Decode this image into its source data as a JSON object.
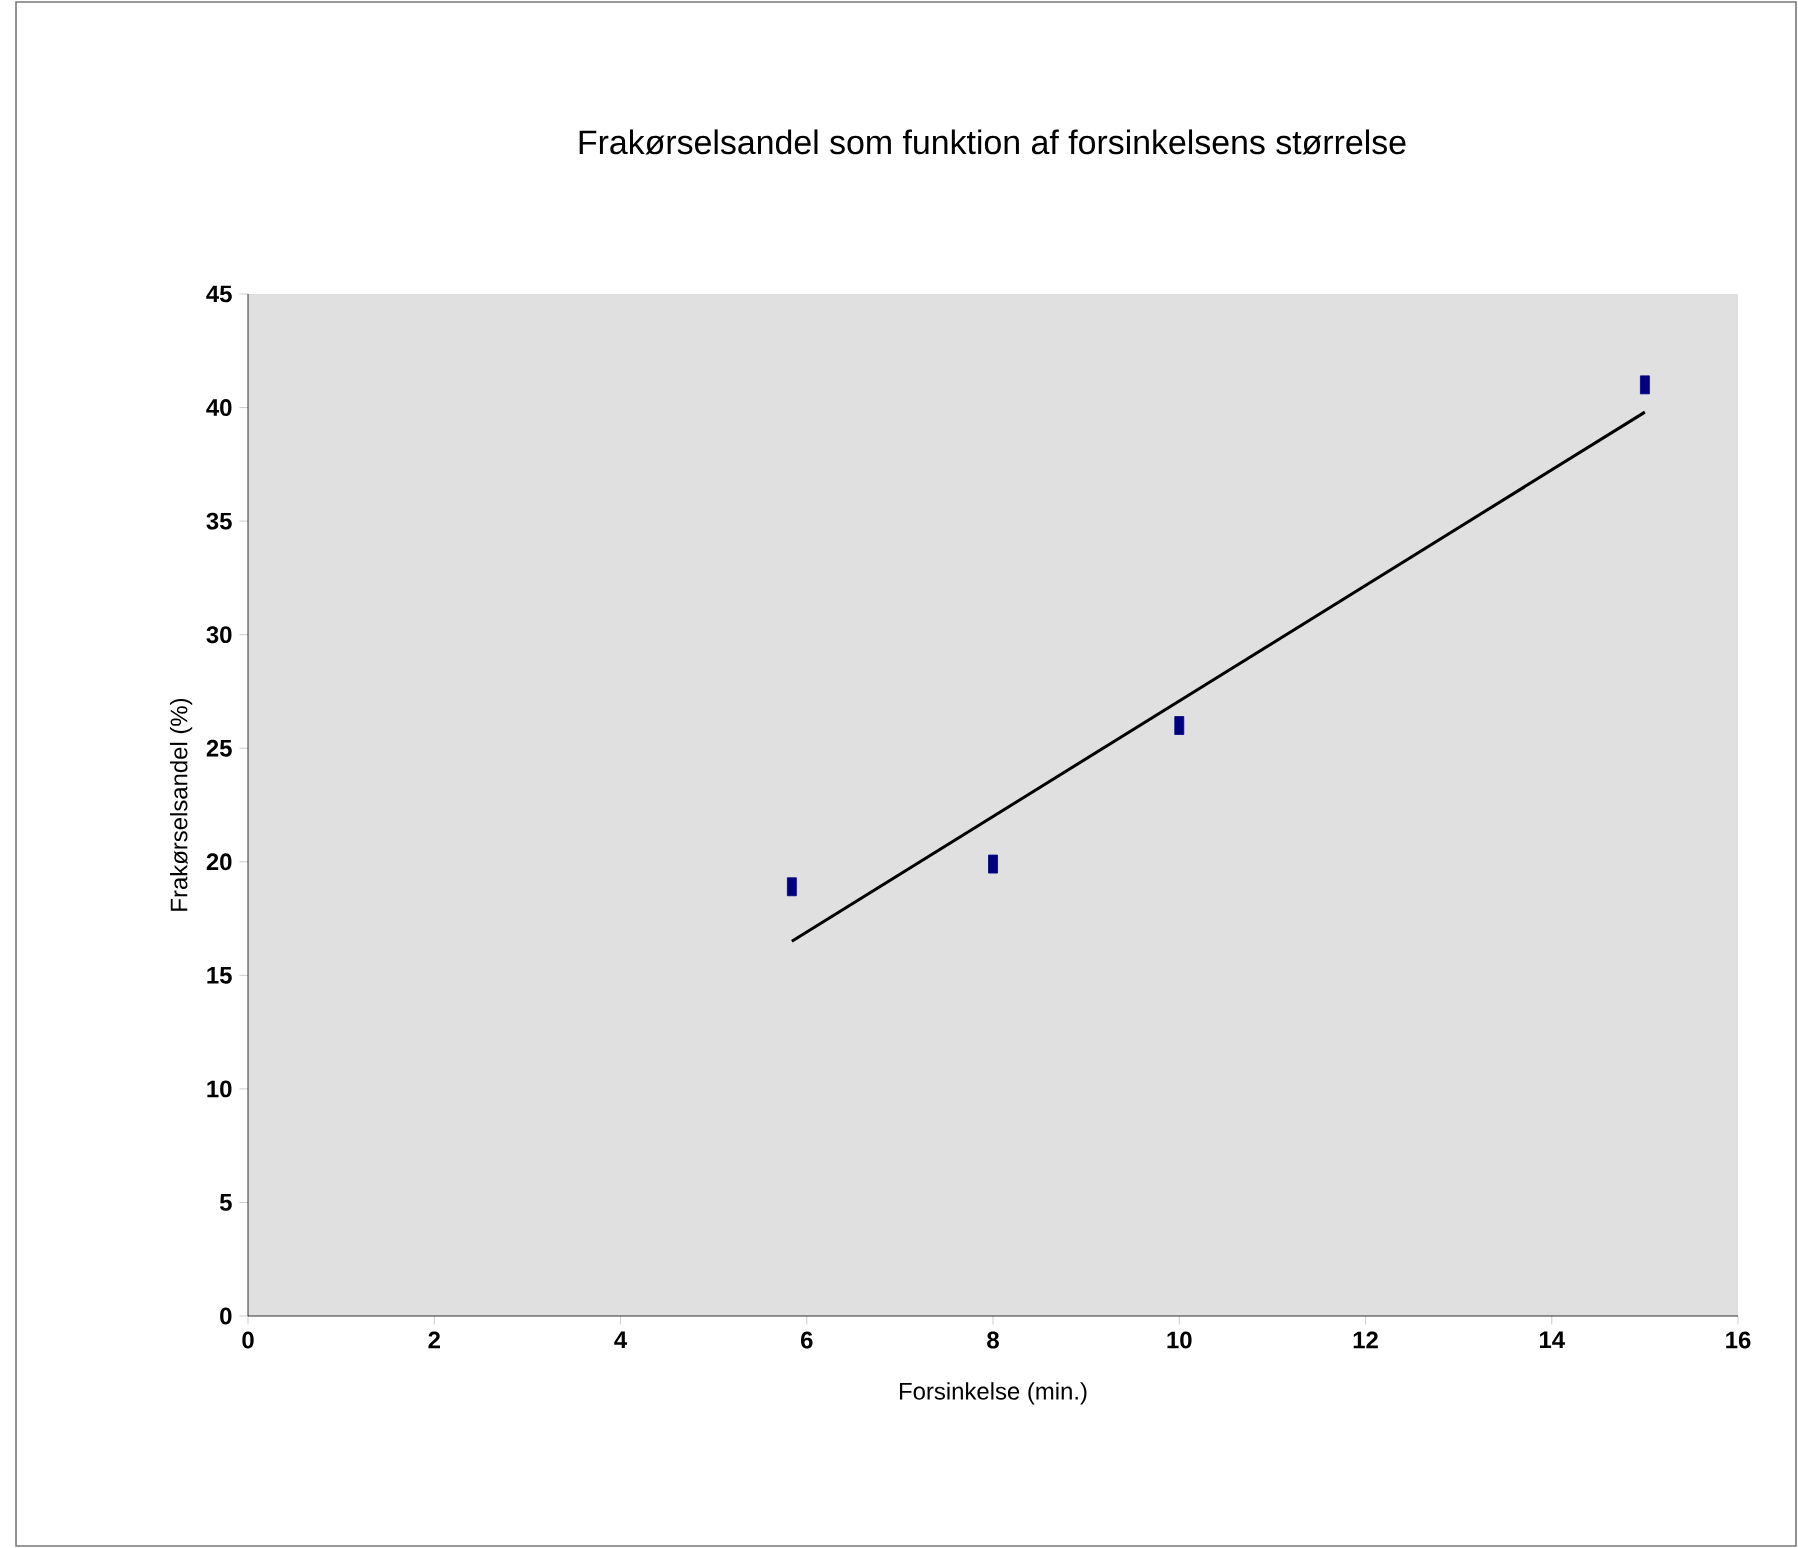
{
  "chart_data": {
    "type": "scatter",
    "title": "Frakørselsandel som funktion af forsinkelsens størrelse",
    "xlabel": "Forsinkelse (min.)",
    "ylabel": "Frakørselsandel (%)",
    "xlim": [
      0,
      16
    ],
    "xticks": [
      0,
      2,
      4,
      6,
      8,
      10,
      12,
      14,
      16
    ],
    "ylim": [
      0,
      45
    ],
    "yticks": [
      0,
      5,
      10,
      15,
      20,
      25,
      30,
      35,
      40,
      45
    ],
    "grid": false,
    "series": [
      {
        "color": "#000080",
        "x": [
          5.84,
          8,
          10,
          15
        ],
        "values": [
          18.9,
          19.9,
          26.0,
          41.0
        ]
      },
      {
        "type": "line",
        "color": "#000000",
        "x": [
          5.84,
          15
        ],
        "values": [
          16.5,
          39.8
        ]
      }
    ]
  }
}
